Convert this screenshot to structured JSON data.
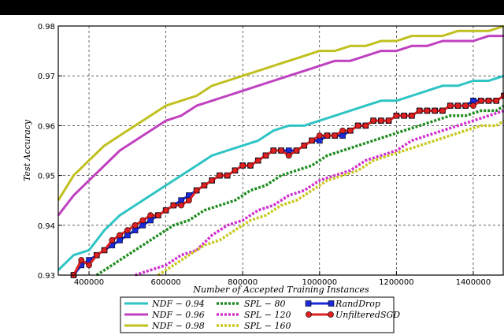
{
  "chart_data": {
    "type": "line",
    "xlabel": "Number of Accepted Training Instances",
    "ylabel": "Test Accuracy",
    "xlim": [
      320000,
      1480000
    ],
    "ylim": [
      0.93,
      0.98
    ],
    "grid": true,
    "legend_position": "bottom-center",
    "xticks": [
      400000,
      600000,
      800000,
      1000000,
      1200000,
      1400000
    ],
    "xtick_labels": [
      "400000",
      "600000",
      "800000",
      "1000000",
      "1200000",
      "1400000"
    ],
    "yticks": [
      0.93,
      0.94,
      0.95,
      0.96,
      0.97,
      0.98
    ],
    "ytick_labels": [
      "0.93",
      "0.94",
      "0.95",
      "0.96",
      "0.97",
      "0.98"
    ],
    "series": [
      {
        "name": "NDF − 0.94",
        "color": "#2ec4c4",
        "style": "solid",
        "x": [
          320000,
          360000,
          400000,
          440000,
          480000,
          520000,
          560000,
          600000,
          640000,
          680000,
          720000,
          760000,
          800000,
          840000,
          880000,
          920000,
          960000,
          1000000,
          1040000,
          1080000,
          1120000,
          1160000,
          1200000,
          1240000,
          1280000,
          1320000,
          1360000,
          1400000,
          1440000,
          1480000
        ],
        "y": [
          0.931,
          0.934,
          0.935,
          0.939,
          0.942,
          0.944,
          0.946,
          0.948,
          0.95,
          0.952,
          0.954,
          0.955,
          0.956,
          0.957,
          0.959,
          0.96,
          0.96,
          0.961,
          0.962,
          0.963,
          0.964,
          0.965,
          0.965,
          0.966,
          0.967,
          0.968,
          0.968,
          0.969,
          0.969,
          0.97
        ]
      },
      {
        "name": "NDF − 0.96",
        "color": "#c040c0",
        "style": "solid",
        "x": [
          320000,
          360000,
          400000,
          440000,
          480000,
          520000,
          560000,
          600000,
          640000,
          680000,
          720000,
          760000,
          800000,
          840000,
          880000,
          920000,
          960000,
          1000000,
          1040000,
          1080000,
          1120000,
          1160000,
          1200000,
          1240000,
          1280000,
          1320000,
          1360000,
          1400000,
          1440000,
          1480000
        ],
        "y": [
          0.942,
          0.946,
          0.949,
          0.952,
          0.955,
          0.957,
          0.959,
          0.961,
          0.962,
          0.964,
          0.965,
          0.966,
          0.967,
          0.968,
          0.969,
          0.97,
          0.971,
          0.972,
          0.973,
          0.973,
          0.974,
          0.975,
          0.975,
          0.976,
          0.976,
          0.977,
          0.977,
          0.977,
          0.978,
          0.978
        ]
      },
      {
        "name": "NDF − 0.98",
        "color": "#c0c020",
        "style": "solid",
        "x": [
          320000,
          360000,
          400000,
          440000,
          480000,
          520000,
          560000,
          600000,
          640000,
          680000,
          720000,
          760000,
          800000,
          840000,
          880000,
          920000,
          960000,
          1000000,
          1040000,
          1080000,
          1120000,
          1160000,
          1200000,
          1240000,
          1280000,
          1320000,
          1360000,
          1400000,
          1440000,
          1480000
        ],
        "y": [
          0.945,
          0.95,
          0.953,
          0.956,
          0.958,
          0.96,
          0.962,
          0.964,
          0.965,
          0.966,
          0.968,
          0.969,
          0.97,
          0.971,
          0.972,
          0.973,
          0.974,
          0.975,
          0.975,
          0.976,
          0.976,
          0.977,
          0.977,
          0.978,
          0.978,
          0.978,
          0.979,
          0.979,
          0.979,
          0.98
        ]
      },
      {
        "name": "SPL − 80",
        "color": "#1e8c1e",
        "style": "dotted",
        "x": [
          420000,
          460000,
          500000,
          540000,
          580000,
          620000,
          660000,
          700000,
          740000,
          780000,
          820000,
          860000,
          900000,
          940000,
          980000,
          1020000,
          1060000,
          1100000,
          1140000,
          1180000,
          1220000,
          1260000,
          1300000,
          1340000,
          1380000,
          1420000,
          1460000,
          1480000
        ],
        "y": [
          0.93,
          0.932,
          0.934,
          0.936,
          0.938,
          0.94,
          0.941,
          0.943,
          0.944,
          0.945,
          0.947,
          0.948,
          0.95,
          0.951,
          0.952,
          0.954,
          0.955,
          0.956,
          0.957,
          0.958,
          0.959,
          0.96,
          0.961,
          0.962,
          0.962,
          0.963,
          0.963,
          0.964
        ]
      },
      {
        "name": "SPL − 120",
        "color": "#d030d0",
        "style": "dotted",
        "x": [
          520000,
          560000,
          600000,
          640000,
          680000,
          720000,
          760000,
          800000,
          840000,
          880000,
          920000,
          960000,
          1000000,
          1040000,
          1080000,
          1120000,
          1160000,
          1200000,
          1240000,
          1280000,
          1320000,
          1360000,
          1400000,
          1440000,
          1480000
        ],
        "y": [
          0.93,
          0.931,
          0.932,
          0.934,
          0.935,
          0.938,
          0.94,
          0.941,
          0.943,
          0.944,
          0.946,
          0.947,
          0.949,
          0.95,
          0.951,
          0.953,
          0.954,
          0.955,
          0.957,
          0.958,
          0.959,
          0.96,
          0.961,
          0.962,
          0.963
        ]
      },
      {
        "name": "SPL − 160",
        "color": "#c8c820",
        "style": "dotted",
        "x": [
          580000,
          620000,
          660000,
          700000,
          740000,
          780000,
          820000,
          860000,
          900000,
          940000,
          980000,
          1020000,
          1060000,
          1100000,
          1140000,
          1180000,
          1220000,
          1260000,
          1300000,
          1340000,
          1380000,
          1420000,
          1460000,
          1480000
        ],
        "y": [
          0.93,
          0.932,
          0.934,
          0.936,
          0.937,
          0.939,
          0.941,
          0.942,
          0.944,
          0.945,
          0.947,
          0.949,
          0.95,
          0.951,
          0.953,
          0.954,
          0.955,
          0.956,
          0.957,
          0.958,
          0.959,
          0.96,
          0.96,
          0.961
        ]
      },
      {
        "name": "RandDrop",
        "color": "#1a2ad8",
        "style": "solid",
        "marker": "square",
        "x": [
          360000,
          380000,
          400000,
          420000,
          440000,
          460000,
          480000,
          500000,
          520000,
          540000,
          560000,
          580000,
          600000,
          620000,
          640000,
          660000,
          680000,
          700000,
          720000,
          740000,
          760000,
          780000,
          800000,
          820000,
          840000,
          860000,
          880000,
          900000,
          920000,
          940000,
          960000,
          980000,
          1000000,
          1020000,
          1040000,
          1060000,
          1080000,
          1100000,
          1120000,
          1140000,
          1160000,
          1180000,
          1200000,
          1220000,
          1240000,
          1260000,
          1280000,
          1300000,
          1320000,
          1340000,
          1360000,
          1380000,
          1400000,
          1420000,
          1440000,
          1460000,
          1480000
        ],
        "y": [
          0.93,
          0.932,
          0.933,
          0.934,
          0.935,
          0.936,
          0.937,
          0.938,
          0.939,
          0.94,
          0.941,
          0.942,
          0.943,
          0.944,
          0.945,
          0.946,
          0.947,
          0.948,
          0.949,
          0.95,
          0.95,
          0.951,
          0.952,
          0.952,
          0.953,
          0.954,
          0.955,
          0.955,
          0.955,
          0.955,
          0.956,
          0.957,
          0.957,
          0.958,
          0.958,
          0.958,
          0.959,
          0.96,
          0.96,
          0.961,
          0.961,
          0.961,
          0.962,
          0.962,
          0.962,
          0.963,
          0.963,
          0.963,
          0.963,
          0.964,
          0.964,
          0.964,
          0.965,
          0.965,
          0.965,
          0.965,
          0.966
        ]
      },
      {
        "name": "UnfilteredSGD",
        "color": "#e02020",
        "style": "solid",
        "marker": "circle",
        "x": [
          360000,
          380000,
          400000,
          420000,
          440000,
          460000,
          480000,
          500000,
          520000,
          540000,
          560000,
          580000,
          600000,
          620000,
          640000,
          660000,
          680000,
          700000,
          720000,
          740000,
          760000,
          780000,
          800000,
          820000,
          840000,
          860000,
          880000,
          900000,
          920000,
          940000,
          960000,
          980000,
          1000000,
          1020000,
          1040000,
          1060000,
          1080000,
          1100000,
          1120000,
          1140000,
          1160000,
          1180000,
          1200000,
          1220000,
          1240000,
          1260000,
          1280000,
          1300000,
          1320000,
          1340000,
          1360000,
          1380000,
          1400000,
          1420000,
          1440000,
          1460000,
          1480000
        ],
        "y": [
          0.93,
          0.933,
          0.932,
          0.934,
          0.935,
          0.937,
          0.938,
          0.939,
          0.94,
          0.941,
          0.942,
          0.942,
          0.943,
          0.944,
          0.944,
          0.945,
          0.947,
          0.948,
          0.949,
          0.95,
          0.95,
          0.951,
          0.952,
          0.952,
          0.953,
          0.954,
          0.955,
          0.955,
          0.954,
          0.955,
          0.956,
          0.957,
          0.958,
          0.958,
          0.958,
          0.959,
          0.959,
          0.96,
          0.96,
          0.961,
          0.961,
          0.961,
          0.962,
          0.962,
          0.962,
          0.963,
          0.963,
          0.963,
          0.963,
          0.964,
          0.964,
          0.964,
          0.964,
          0.965,
          0.965,
          0.965,
          0.966
        ]
      }
    ]
  }
}
